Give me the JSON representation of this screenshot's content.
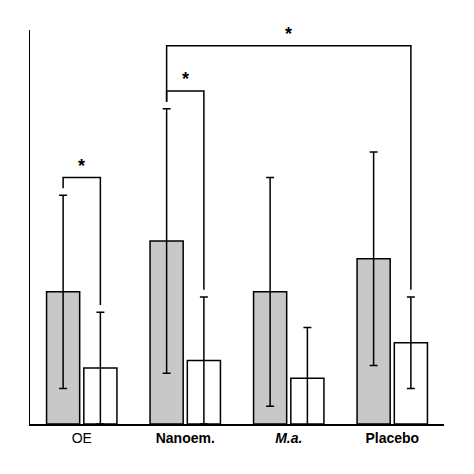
{
  "chart_data": {
    "type": "bar",
    "categories": [
      "OE",
      "Nanoem.",
      "M.a.",
      "Placebo"
    ],
    "series": [
      {
        "color": "#c8c8c8",
        "values": [
          0.52,
          0.72,
          0.52,
          0.65
        ],
        "errors": [
          0.38,
          0.52,
          0.45,
          0.42
        ]
      },
      {
        "color": "#ffffff",
        "values": [
          0.22,
          0.25,
          0.18,
          0.32
        ],
        "errors": [
          0.22,
          0.25,
          0.2,
          0.18
        ]
      }
    ],
    "ylim": [
      0,
      1.55
    ],
    "grid": false,
    "tick_labels": "x",
    "annotations": [
      {
        "text": "*",
        "from": {
          "category": "OE",
          "series": 0
        },
        "to": {
          "category": "OE",
          "series": 1
        }
      },
      {
        "text": "*",
        "from": {
          "category": "Nanoem.",
          "series": 0
        },
        "to": {
          "category": "Nanoem.",
          "series": 1
        }
      },
      {
        "text": "*",
        "from": {
          "category": "Nanoem.",
          "series": 0
        },
        "to": {
          "category": "Placebo",
          "series": 1
        }
      }
    ]
  }
}
